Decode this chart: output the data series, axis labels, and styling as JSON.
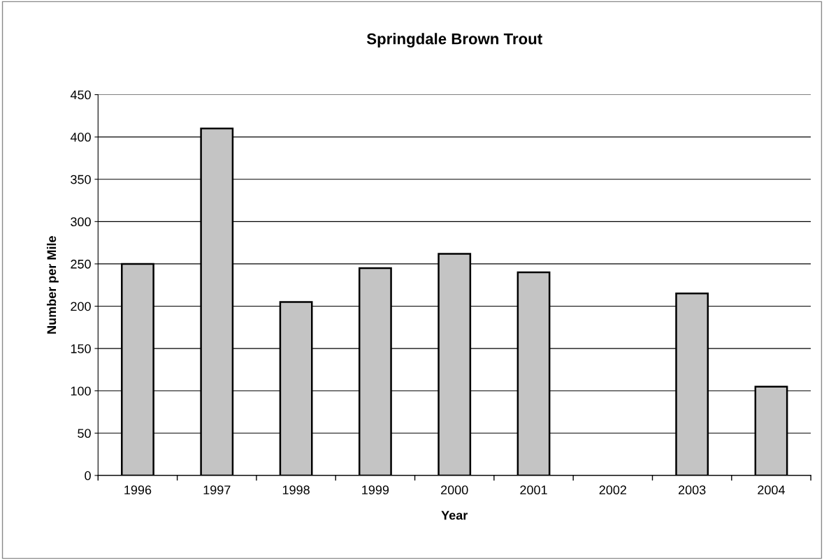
{
  "chart_data": {
    "type": "bar",
    "title": "Springdale Brown Trout",
    "xlabel": "Year",
    "ylabel": "Number per Mile",
    "categories": [
      "1996",
      "1997",
      "1998",
      "1999",
      "2000",
      "2001",
      "2002",
      "2003",
      "2004"
    ],
    "values": [
      250,
      410,
      205,
      245,
      262,
      240,
      null,
      215,
      105
    ],
    "color": "#c4c4c4",
    "ylim": [
      0,
      450
    ],
    "yticks": [
      0,
      50,
      100,
      150,
      200,
      250,
      300,
      350,
      400,
      450
    ],
    "grid": "y"
  }
}
